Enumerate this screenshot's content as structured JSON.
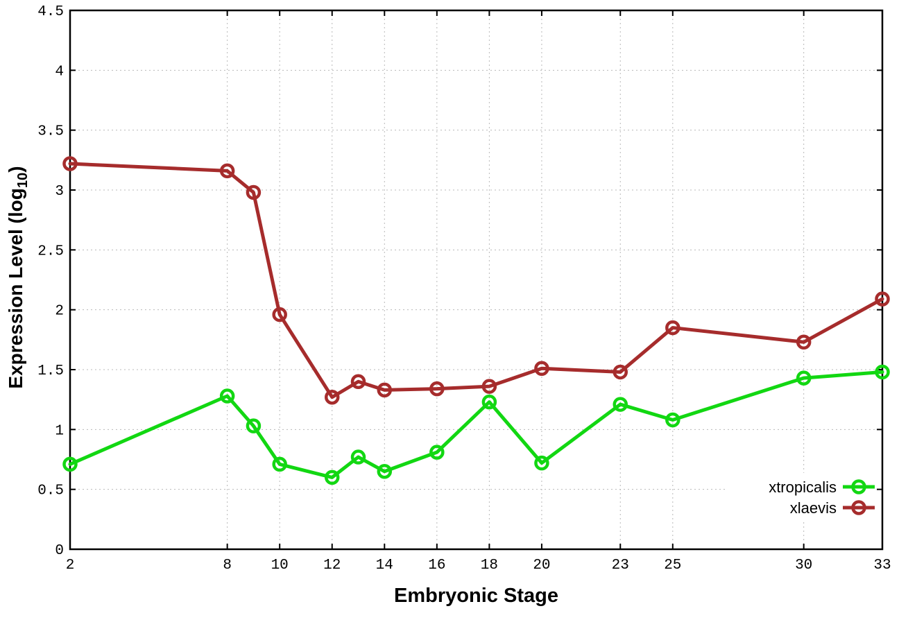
{
  "chart_data": {
    "type": "line",
    "title": "",
    "xlabel": "Embryonic Stage",
    "ylabel": "Expression Level (log10)",
    "ylabel_rich": {
      "main": "Expression Level (log",
      "sub": "10",
      "end": ")"
    },
    "xlim": [
      2,
      33
    ],
    "ylim": [
      0,
      4.5
    ],
    "x_ticks": [
      2,
      8,
      10,
      12,
      14,
      16,
      18,
      20,
      23,
      25,
      30,
      33
    ],
    "y_ticks": [
      0,
      0.5,
      1,
      1.5,
      2,
      2.5,
      3,
      3.5,
      4,
      4.5
    ],
    "grid": true,
    "legend_position": "inside-bottom-right",
    "x": [
      2,
      8,
      9,
      10,
      12,
      13,
      14,
      16,
      18,
      20,
      23,
      25,
      30,
      33
    ],
    "series": [
      {
        "name": "xtropicalis",
        "color": "#12d712",
        "marker": "open-circle",
        "values": [
          0.71,
          1.28,
          1.03,
          0.71,
          0.6,
          0.77,
          0.65,
          0.81,
          1.23,
          0.72,
          1.21,
          1.08,
          1.43,
          1.48
        ]
      },
      {
        "name": "xlaevis",
        "color": "#a62c2c",
        "marker": "open-circle",
        "values": [
          3.22,
          3.16,
          2.98,
          1.96,
          1.27,
          1.4,
          1.33,
          1.34,
          1.36,
          1.51,
          1.48,
          1.85,
          1.73,
          2.09
        ]
      }
    ],
    "style": {
      "grid_color": "#b8b8b8",
      "axis_color": "#000000",
      "background": "#ffffff",
      "line_width": 5,
      "marker_radius": 8.5
    }
  }
}
